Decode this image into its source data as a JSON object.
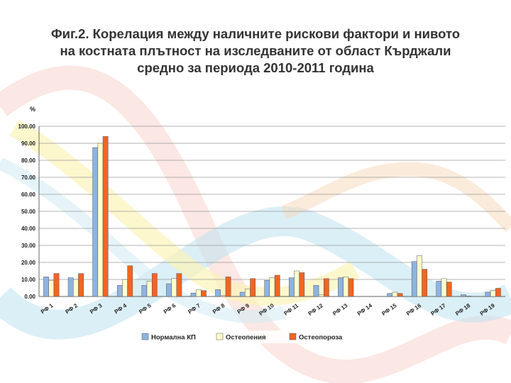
{
  "title": {
    "line1": "Фиг.2. Корелация между наличните рискови фактори и нивото",
    "line2": "на костната плътност на изследваните от област Кърджали",
    "line3": "средно за периода 2010-2011 година"
  },
  "colors": {
    "normal": "#8db4e2",
    "osteopenia": "#ffffcc",
    "osteoporosis": "#f26522"
  },
  "chart_data": {
    "type": "bar",
    "ylabel": "%",
    "ylim": [
      0,
      100
    ],
    "y_ticks": [
      "0.00",
      "10.00",
      "20.00",
      "30.00",
      "40.00",
      "50.00",
      "60.00",
      "70.00",
      "80.00",
      "90.00",
      "100.00"
    ],
    "categories": [
      "РФ 1",
      "РФ 2",
      "РФ 3",
      "РФ 4",
      "РФ 5",
      "РФ 6",
      "РФ 7",
      "РФ 8",
      "РФ 9",
      "РФ 10",
      "РФ 11",
      "РФ 12",
      "РФ 13",
      "РФ 14",
      "РФ 15",
      "РФ 16",
      "РФ 17",
      "РФ 18",
      "РФ 19"
    ],
    "series": [
      {
        "name": "Нормална КП",
        "values": [
          11.5,
          11.0,
          87.5,
          6.5,
          6.5,
          7.5,
          2.0,
          4.0,
          2.5,
          9.5,
          11.0,
          6.5,
          11.0,
          0,
          1.8,
          20.5,
          9.0,
          1.0,
          2.5
        ]
      },
      {
        "name": "Остеопения",
        "values": [
          9.5,
          10.0,
          90.0,
          10.0,
          9.0,
          10.5,
          4.0,
          0.5,
          4.5,
          11.0,
          15.0,
          1.0,
          11.5,
          0,
          2.5,
          24.0,
          10.5,
          0.3,
          3.5
        ]
      },
      {
        "name": "Остеопороза",
        "values": [
          13.5,
          13.5,
          94.0,
          18.0,
          13.5,
          13.5,
          3.5,
          11.5,
          10.5,
          12.5,
          14.0,
          10.5,
          10.5,
          0,
          1.8,
          16.0,
          8.5,
          0,
          4.8
        ]
      }
    ],
    "legend": "bottom",
    "grid": true
  }
}
